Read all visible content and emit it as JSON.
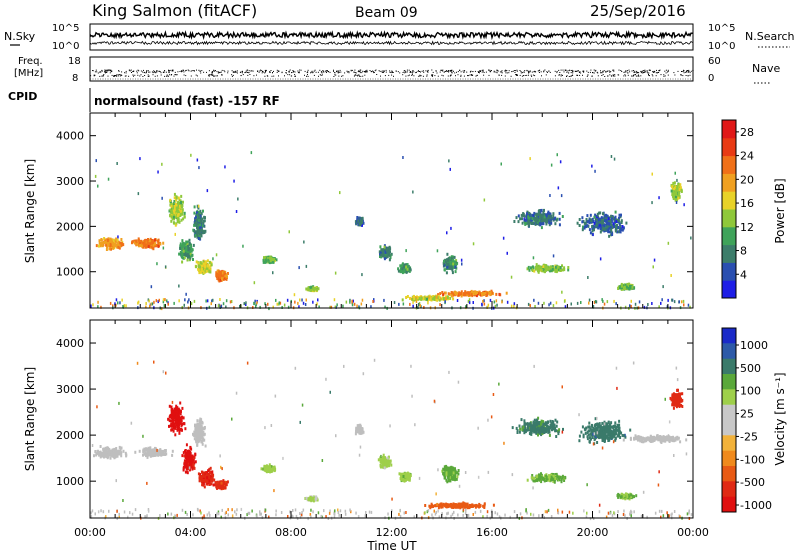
{
  "header": {
    "station": "King Salmon (fitACF)",
    "beam": "Beam 09",
    "date": "25/Sep/2016"
  },
  "noise_panel": {
    "left_label": "N.Sky",
    "right_label": "N.Search",
    "left_ticks": [
      "10^5",
      "10^0"
    ],
    "right_ticks": [
      "10^5",
      "10^0"
    ]
  },
  "freq_panel": {
    "left_label_1": "Freq.",
    "left_label_2": "[MHz]",
    "left_ticks": [
      "18",
      "8"
    ],
    "right_label": "Nave",
    "right_ticks": [
      "60",
      "0"
    ]
  },
  "cpid": {
    "label": "CPID",
    "text": "normalsound (fast) -157 RF"
  },
  "colors": {
    "power_scale": [
      "#1e1ee6",
      "#2a4fb0",
      "#3c7d6a",
      "#3fa35a",
      "#8fc83a",
      "#e8d228",
      "#f0a020",
      "#f07018",
      "#e83a14",
      "#e01818"
    ],
    "velocity_scale": [
      "#1a2ac8",
      "#2d5aa8",
      "#3a7a6a",
      "#5aa83a",
      "#9ecf4a",
      "#c8c8c8",
      "#c8c8c8",
      "#f2b23a",
      "#f08a1c",
      "#e85a14",
      "#e02a14",
      "#e01010"
    ],
    "ground_scatter": "#bebebe"
  },
  "chart_data": [
    {
      "type": "heatmap",
      "name": "power",
      "ylabel": "Slant Range [km]",
      "xlabel": "",
      "xlim": [
        "00:00",
        "24:00"
      ],
      "ylim": [
        200,
        4500
      ],
      "yticks": [
        "1000",
        "2000",
        "3000",
        "4000"
      ],
      "colorbar": {
        "label": "Power [dB]",
        "ticks": [
          "4",
          "8",
          "12",
          "16",
          "20",
          "24",
          "28"
        ],
        "range": [
          0,
          30
        ]
      },
      "blobs": [
        {
          "t": 0.8,
          "r": 1650,
          "dt": 1.2,
          "dr": 300,
          "v": 20
        },
        {
          "t": 2.3,
          "r": 1650,
          "dt": 1.6,
          "dr": 250,
          "v": 22
        },
        {
          "t": 3.4,
          "r": 2400,
          "dt": 0.8,
          "dr": 800,
          "v": 14
        },
        {
          "t": 3.8,
          "r": 1500,
          "dt": 0.7,
          "dr": 600,
          "v": 10
        },
        {
          "t": 4.3,
          "r": 2100,
          "dt": 0.6,
          "dr": 900,
          "v": 8
        },
        {
          "t": 4.5,
          "r": 1100,
          "dt": 0.8,
          "dr": 400,
          "v": 16
        },
        {
          "t": 5.2,
          "r": 950,
          "dt": 0.6,
          "dr": 300,
          "v": 22
        },
        {
          "t": 7.1,
          "r": 1300,
          "dt": 0.7,
          "dr": 200,
          "v": 12
        },
        {
          "t": 8.8,
          "r": 650,
          "dt": 0.6,
          "dr": 120,
          "v": 14
        },
        {
          "t": 10.7,
          "r": 2150,
          "dt": 0.4,
          "dr": 250,
          "v": 6
        },
        {
          "t": 11.7,
          "r": 1450,
          "dt": 0.6,
          "dr": 350,
          "v": 8
        },
        {
          "t": 12.5,
          "r": 1100,
          "dt": 0.6,
          "dr": 250,
          "v": 10
        },
        {
          "t": 14.3,
          "r": 1200,
          "dt": 0.8,
          "dr": 450,
          "v": 9
        },
        {
          "t": 15.1,
          "r": 550,
          "dt": 3.0,
          "dr": 140,
          "v": 22
        },
        {
          "t": 13.5,
          "r": 450,
          "dt": 2.5,
          "dr": 120,
          "v": 16
        },
        {
          "t": 17.8,
          "r": 2200,
          "dt": 2.2,
          "dr": 450,
          "v": 7
        },
        {
          "t": 18.2,
          "r": 1100,
          "dt": 2.0,
          "dr": 220,
          "v": 13
        },
        {
          "t": 20.4,
          "r": 2100,
          "dt": 2.2,
          "dr": 600,
          "v": 6
        },
        {
          "t": 21.3,
          "r": 700,
          "dt": 0.9,
          "dr": 150,
          "v": 12
        },
        {
          "t": 23.3,
          "r": 2800,
          "dt": 0.6,
          "dr": 500,
          "v": 14
        }
      ]
    },
    {
      "type": "heatmap",
      "name": "velocity",
      "ylabel": "Slant Range [km]",
      "xlabel": "Time UT",
      "xlim": [
        "00:00",
        "24:00"
      ],
      "ylim": [
        200,
        4500
      ],
      "xticks": [
        "00:00",
        "04:00",
        "08:00",
        "12:00",
        "16:00",
        "20:00",
        "00:00"
      ],
      "yticks": [
        "1000",
        "2000",
        "3000",
        "4000"
      ],
      "colorbar": {
        "label": "Velocity [m s⁻¹]",
        "ticks": [
          "1000",
          "500",
          "100",
          "25",
          "-25",
          "-100",
          "-500",
          "-1000"
        ]
      },
      "blobs": [
        {
          "t": 0.8,
          "r": 1650,
          "dt": 1.6,
          "dr": 300,
          "v": 0,
          "gs": true
        },
        {
          "t": 2.5,
          "r": 1650,
          "dt": 1.6,
          "dr": 250,
          "v": 0,
          "gs": true
        },
        {
          "t": 3.4,
          "r": 2400,
          "dt": 0.8,
          "dr": 800,
          "v": -700
        },
        {
          "t": 3.9,
          "r": 1500,
          "dt": 0.7,
          "dr": 700,
          "v": -600
        },
        {
          "t": 4.3,
          "r": 2100,
          "dt": 0.6,
          "dr": 800,
          "v": 0,
          "gs": true
        },
        {
          "t": 4.6,
          "r": 1100,
          "dt": 0.8,
          "dr": 500,
          "v": -450
        },
        {
          "t": 5.2,
          "r": 950,
          "dt": 0.6,
          "dr": 250,
          "v": -300
        },
        {
          "t": 7.1,
          "r": 1300,
          "dt": 0.7,
          "dr": 200,
          "v": 80
        },
        {
          "t": 8.8,
          "r": 650,
          "dt": 0.6,
          "dr": 120,
          "v": 60
        },
        {
          "t": 10.7,
          "r": 2150,
          "dt": 0.4,
          "dr": 250,
          "v": 0,
          "gs": true
        },
        {
          "t": 11.7,
          "r": 1450,
          "dt": 0.6,
          "dr": 350,
          "v": 70
        },
        {
          "t": 12.5,
          "r": 1100,
          "dt": 0.6,
          "dr": 250,
          "v": 90
        },
        {
          "t": 14.3,
          "r": 1200,
          "dt": 0.8,
          "dr": 450,
          "v": 120
        },
        {
          "t": 14.6,
          "r": 500,
          "dt": 3.4,
          "dr": 140,
          "v": -150
        },
        {
          "t": 17.8,
          "r": 2200,
          "dt": 2.2,
          "dr": 450,
          "v": 300
        },
        {
          "t": 18.2,
          "r": 1100,
          "dt": 2.0,
          "dr": 220,
          "v": 110
        },
        {
          "t": 20.4,
          "r": 2100,
          "dt": 2.2,
          "dr": 600,
          "v": 400
        },
        {
          "t": 21.3,
          "r": 700,
          "dt": 0.9,
          "dr": 150,
          "v": 100
        },
        {
          "t": 23.3,
          "r": 2800,
          "dt": 0.6,
          "dr": 500,
          "v": -400
        },
        {
          "t": 22.5,
          "r": 1950,
          "dt": 3.0,
          "dr": 180,
          "v": 0,
          "gs": true
        }
      ]
    }
  ]
}
